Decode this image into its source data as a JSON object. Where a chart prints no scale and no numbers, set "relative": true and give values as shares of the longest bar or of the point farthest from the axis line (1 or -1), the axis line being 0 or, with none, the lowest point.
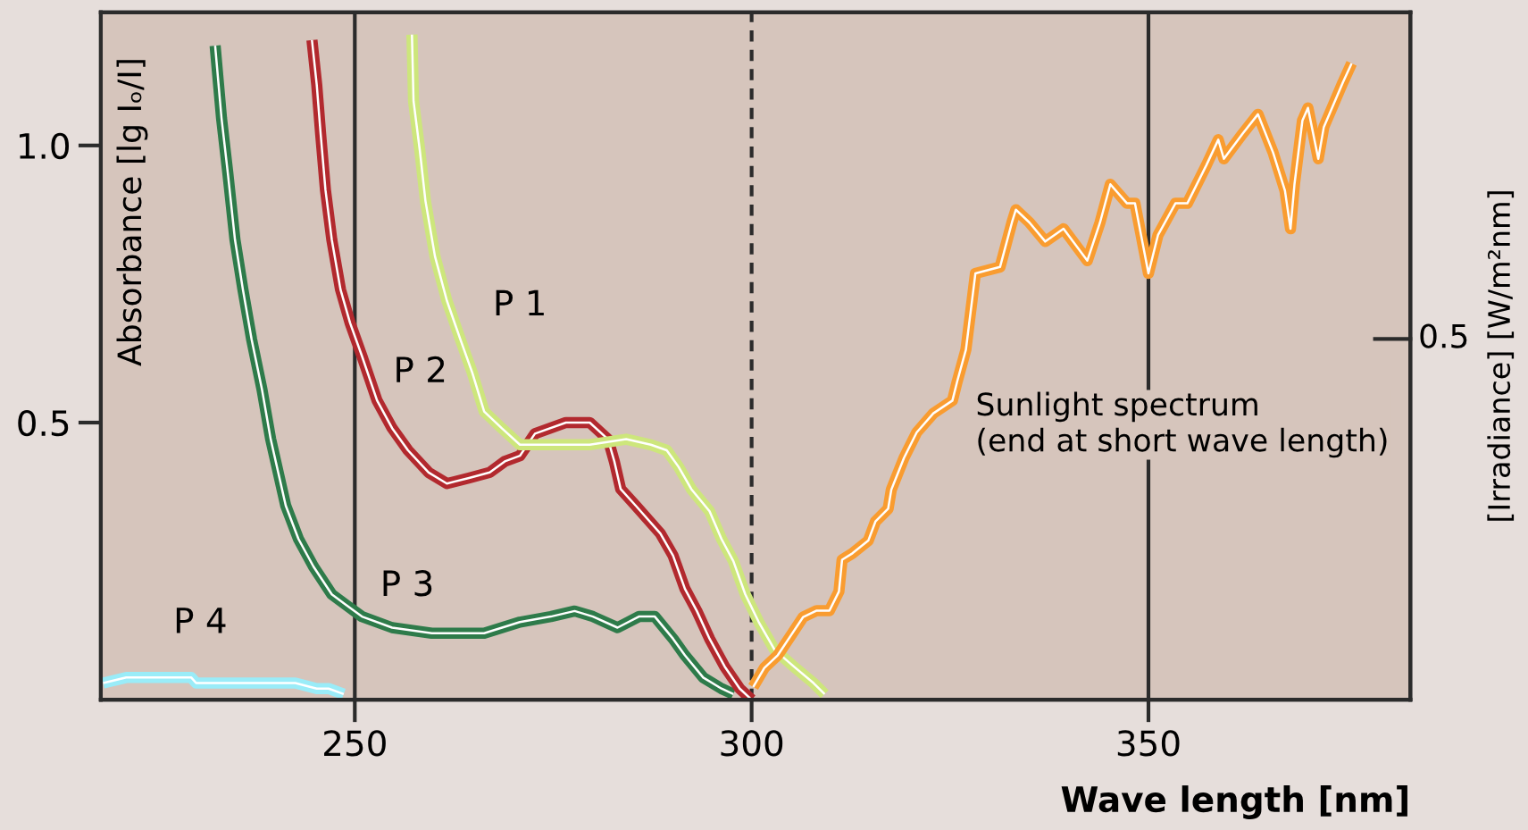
{
  "chart_data": [
    {
      "type": "line",
      "xlabel": "Wave length [nm]",
      "ylabel": "Absorbance [lg Iₒ/I]",
      "xlim": [
        218,
        383
      ],
      "xticks": [
        250,
        300,
        350
      ],
      "ylim": [
        0,
        1.24
      ],
      "yticks": [
        0.5,
        {
          "value": 1,
          "label": "1.0"
        }
      ],
      "grid": "x",
      "ref_lines": [
        {
          "axis": "x",
          "value": 300,
          "line_style": "dashed",
          "color": "#2b2b2b"
        }
      ],
      "series": [
        {
          "name": "P 1",
          "color": "#cde67c",
          "x": [
            257.2,
            257.4,
            258.2,
            258.9,
            260.1,
            261.6,
            263.3,
            264.8,
            266.3,
            268.5,
            270.8,
            274.7,
            279.6,
            284.2,
            287.3,
            289.3,
            290.8,
            292.4,
            294.7,
            296.2,
            297.7,
            299.2,
            300.9,
            302.9,
            305.3,
            307.8,
            309.2
          ],
          "values": [
            1.2,
            1.08,
            0.99,
            0.9,
            0.8,
            0.72,
            0.65,
            0.59,
            0.52,
            0.49,
            0.46,
            0.46,
            0.46,
            0.47,
            0.46,
            0.45,
            0.42,
            0.38,
            0.34,
            0.29,
            0.25,
            0.19,
            0.14,
            0.09,
            0.06,
            0.03,
            0.01
          ]
        },
        {
          "name": "P 2",
          "color": "#b2292e",
          "x": [
            244.6,
            245.2,
            245.7,
            246.3,
            247.1,
            248.2,
            249.4,
            250.9,
            252.8,
            254.7,
            256.7,
            259.3,
            261.6,
            264.4,
            267.0,
            268.9,
            270.8,
            272.7,
            276.6,
            279.6,
            281.9,
            282.7,
            283.5,
            285.4,
            288.5,
            290.1,
            291.6,
            293.1,
            294.7,
            296.6,
            298.5,
            300.0
          ],
          "values": [
            1.19,
            1.11,
            1.02,
            0.92,
            0.83,
            0.74,
            0.68,
            0.62,
            0.54,
            0.49,
            0.45,
            0.41,
            0.39,
            0.4,
            0.41,
            0.43,
            0.44,
            0.48,
            0.5,
            0.5,
            0.47,
            0.43,
            0.38,
            0.35,
            0.3,
            0.26,
            0.2,
            0.16,
            0.11,
            0.06,
            0.02,
            0.0
          ]
        },
        {
          "name": "P 3",
          "color": "#2e7b4a",
          "x": [
            232.4,
            233.2,
            234.0,
            234.9,
            235.9,
            237.0,
            238.3,
            239.4,
            241.3,
            242.9,
            244.8,
            247.1,
            249.0,
            250.9,
            254.7,
            259.7,
            266.3,
            270.8,
            274.7,
            277.7,
            280.0,
            283.1,
            285.8,
            287.8,
            290.1,
            291.6,
            293.9,
            296.2,
            297.7
          ],
          "values": [
            1.18,
            1.05,
            0.95,
            0.83,
            0.74,
            0.65,
            0.56,
            0.47,
            0.35,
            0.29,
            0.24,
            0.19,
            0.17,
            0.15,
            0.13,
            0.12,
            0.12,
            0.14,
            0.15,
            0.16,
            0.15,
            0.13,
            0.15,
            0.15,
            0.11,
            0.08,
            0.04,
            0.02,
            0.01
          ]
        },
        {
          "name": "P 4",
          "color": "#9aecf8",
          "x": [
            218.3,
            221.2,
            229.4,
            230.0,
            238.3,
            238.7,
            242.5,
            245.2,
            246.7,
            248.6
          ],
          "values": [
            0.03,
            0.04,
            0.04,
            0.03,
            0.03,
            0.03,
            0.03,
            0.02,
            0.02,
            0.01
          ]
        }
      ]
    },
    {
      "type": "line",
      "relative": true,
      "ylabel": "[Irradiance] [W/m²nm]",
      "xlim": [
        218,
        383
      ],
      "annotations": [
        "0.5"
      ],
      "series": [
        {
          "name": "Sunlight spectrum\n(end at short wave length)",
          "color": "#f99c30",
          "x": [
            300.2,
            301.6,
            303.3,
            304.9,
            306.5,
            308.2,
            309.8,
            311.0,
            311.4,
            312.7,
            314.7,
            315.6,
            317.2,
            317.6,
            319.2,
            320.8,
            322.9,
            325.3,
            325.9,
            327.0,
            327.8,
            328.2,
            331.3,
            332.8,
            333.3,
            335.0,
            337.0,
            339.3,
            342.3,
            343.9,
            345.2,
            347.3,
            348.3,
            350.0,
            351.2,
            353.4,
            354.9,
            357.3,
            358.8,
            359.5,
            361.9,
            363.8,
            365.7,
            367.2,
            367.9,
            368.4,
            369.4,
            370.1,
            371.4,
            372.1,
            374.5,
            375.6
          ],
          "values": [
            0.02,
            0.05,
            0.07,
            0.1,
            0.13,
            0.14,
            0.14,
            0.17,
            0.22,
            0.23,
            0.25,
            0.28,
            0.3,
            0.33,
            0.38,
            0.42,
            0.45,
            0.47,
            0.5,
            0.55,
            0.63,
            0.67,
            0.68,
            0.75,
            0.77,
            0.75,
            0.72,
            0.74,
            0.69,
            0.75,
            0.81,
            0.78,
            0.78,
            0.67,
            0.73,
            0.78,
            0.78,
            0.84,
            0.88,
            0.85,
            0.89,
            0.92,
            0.86,
            0.8,
            0.74,
            0.81,
            0.91,
            0.93,
            0.85,
            0.9,
            0.97,
            1.0
          ]
        }
      ]
    }
  ]
}
